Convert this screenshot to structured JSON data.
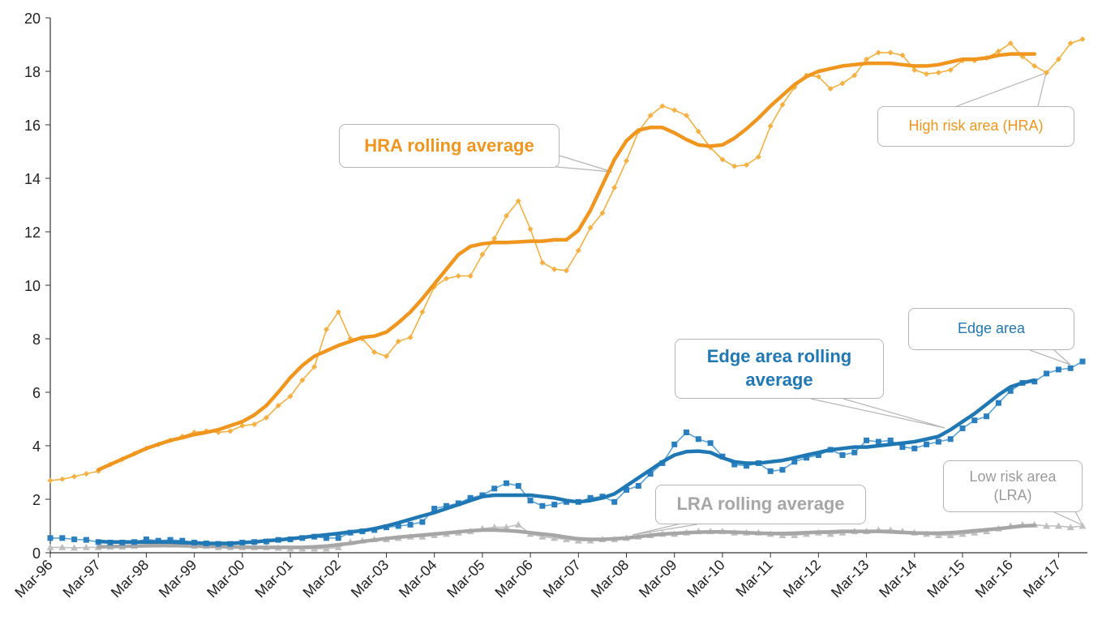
{
  "chart_data": {
    "type": "line",
    "categories": [
      "Mar-96",
      null,
      null,
      null,
      "Mar-97",
      null,
      null,
      null,
      "Mar-98",
      null,
      null,
      null,
      "Mar-99",
      null,
      null,
      null,
      "Mar-00",
      null,
      null,
      null,
      "Mar-01",
      null,
      null,
      null,
      "Mar-02",
      null,
      null,
      null,
      "Mar-03",
      null,
      null,
      null,
      "Mar-04",
      null,
      null,
      null,
      "Mar-05",
      null,
      null,
      null,
      "Mar-06",
      null,
      null,
      null,
      "Mar-07",
      null,
      null,
      null,
      "Mar-08",
      null,
      null,
      null,
      "Mar-09",
      null,
      null,
      null,
      "Mar-10",
      null,
      null,
      null,
      "Mar-11",
      null,
      null,
      null,
      "Mar-12",
      null,
      null,
      null,
      "Mar-13",
      null,
      null,
      null,
      "Mar-14",
      null,
      null,
      null,
      "Mar-15",
      null,
      null,
      null,
      "Mar-16",
      null,
      null,
      null,
      "Mar-17",
      null,
      null
    ],
    "ylim": [
      0,
      20
    ],
    "yticks": [
      0,
      2,
      4,
      6,
      8,
      10,
      12,
      14,
      16,
      18,
      20
    ],
    "grid": false,
    "series": [
      {
        "name": "High risk area (HRA)",
        "color": "#f5b041",
        "marker": "diamond",
        "values": [
          2.7,
          2.75,
          2.85,
          2.95,
          3.05,
          3.3,
          3.5,
          3.7,
          3.9,
          4.05,
          4.2,
          4.35,
          4.5,
          4.55,
          4.5,
          4.55,
          4.75,
          4.8,
          5.05,
          5.5,
          5.85,
          6.45,
          6.95,
          8.35,
          9.0,
          8.0,
          8.0,
          7.5,
          7.35,
          7.9,
          8.05,
          9.0,
          9.95,
          10.25,
          10.35,
          10.35,
          11.15,
          11.75,
          12.6,
          13.15,
          12.1,
          10.85,
          10.6,
          10.55,
          11.3,
          12.15,
          12.7,
          13.65,
          14.65,
          15.75,
          16.35,
          16.7,
          16.55,
          16.35,
          15.75,
          15.15,
          14.7,
          14.45,
          14.5,
          14.8,
          15.95,
          16.75,
          17.4,
          17.85,
          17.8,
          17.35,
          17.55,
          17.85,
          18.45,
          18.7,
          18.7,
          18.6,
          18.05,
          17.9,
          17.95,
          18.05,
          18.4,
          18.4,
          18.5,
          18.75,
          19.05,
          18.55,
          18.2,
          17.95,
          18.45,
          19.05,
          19.2
        ]
      },
      {
        "name": "HRA rolling average",
        "color": "#f0961e",
        "marker": null,
        "values": [
          null,
          null,
          null,
          null,
          3.1,
          3.3,
          3.5,
          3.7,
          3.9,
          4.05,
          4.2,
          4.3,
          4.42,
          4.5,
          4.6,
          4.75,
          4.9,
          5.15,
          5.5,
          6.0,
          6.55,
          7.0,
          7.35,
          7.55,
          7.75,
          7.9,
          8.05,
          8.1,
          8.25,
          8.6,
          9.0,
          9.5,
          10.05,
          10.6,
          11.15,
          11.45,
          11.55,
          11.6,
          11.6,
          11.62,
          11.65,
          11.65,
          11.7,
          11.7,
          12.05,
          12.8,
          13.75,
          14.7,
          15.4,
          15.8,
          15.9,
          15.9,
          15.7,
          15.45,
          15.25,
          15.2,
          15.25,
          15.5,
          15.85,
          16.25,
          16.7,
          17.1,
          17.5,
          17.8,
          18.0,
          18.1,
          18.2,
          18.25,
          18.3,
          18.3,
          18.3,
          18.25,
          18.2,
          18.2,
          18.25,
          18.35,
          18.45,
          18.45,
          18.5,
          18.6,
          18.65,
          18.65,
          18.65,
          null,
          null,
          null,
          null
        ]
      },
      {
        "name": "Edge area",
        "color": "#5ba3d6",
        "marker": "square",
        "values": [
          0.55,
          0.55,
          0.5,
          0.48,
          0.4,
          0.38,
          0.38,
          0.4,
          0.5,
          0.45,
          0.48,
          0.45,
          0.38,
          0.35,
          0.33,
          0.33,
          0.38,
          0.4,
          0.42,
          0.48,
          0.5,
          0.55,
          0.6,
          0.55,
          0.55,
          0.75,
          0.8,
          0.85,
          0.95,
          1.0,
          1.05,
          1.15,
          1.65,
          1.75,
          1.85,
          2.05,
          2.15,
          2.4,
          2.6,
          2.5,
          1.95,
          1.75,
          1.8,
          1.9,
          1.9,
          2.05,
          2.1,
          1.9,
          2.35,
          2.5,
          2.95,
          3.35,
          4.05,
          4.5,
          4.25,
          4.1,
          3.6,
          3.3,
          3.25,
          3.35,
          3.05,
          3.1,
          3.4,
          3.55,
          3.65,
          3.85,
          3.65,
          3.75,
          4.2,
          4.15,
          4.2,
          3.95,
          3.9,
          4.05,
          4.15,
          4.25,
          4.65,
          4.95,
          5.1,
          5.6,
          6.05,
          6.35,
          6.4,
          6.7,
          6.85,
          6.9,
          7.15
        ]
      },
      {
        "name": "Edge area rolling average",
        "color": "#1f78b4",
        "marker": null,
        "values": [
          null,
          null,
          null,
          null,
          0.42,
          0.4,
          0.4,
          0.4,
          0.4,
          0.4,
          0.4,
          0.38,
          0.37,
          0.35,
          0.35,
          0.35,
          0.38,
          0.4,
          0.45,
          0.48,
          0.52,
          0.57,
          0.62,
          0.67,
          0.72,
          0.78,
          0.82,
          0.9,
          1.0,
          1.12,
          1.25,
          1.38,
          1.5,
          1.65,
          1.8,
          1.95,
          2.1,
          2.15,
          2.15,
          2.15,
          2.15,
          2.1,
          2.05,
          1.95,
          1.9,
          1.95,
          2.05,
          2.2,
          2.5,
          2.8,
          3.1,
          3.4,
          3.65,
          3.78,
          3.8,
          3.75,
          3.55,
          3.4,
          3.35,
          3.35,
          3.4,
          3.45,
          3.55,
          3.65,
          3.75,
          3.85,
          3.9,
          3.95,
          3.95,
          4.0,
          4.05,
          4.1,
          4.15,
          4.25,
          4.35,
          4.6,
          4.9,
          5.2,
          5.55,
          5.9,
          6.2,
          6.35,
          6.45,
          null,
          null,
          null,
          null
        ]
      },
      {
        "name": "Low risk area (LRA)",
        "color": "#bfbfbf",
        "marker": "triangle",
        "values": [
          0.2,
          0.2,
          0.18,
          0.2,
          0.2,
          0.22,
          0.22,
          0.25,
          0.3,
          0.3,
          0.3,
          0.3,
          0.25,
          0.25,
          0.2,
          0.2,
          0.2,
          0.2,
          0.2,
          0.18,
          0.15,
          0.15,
          0.15,
          0.15,
          0.2,
          0.4,
          0.45,
          0.5,
          0.5,
          0.55,
          0.6,
          0.6,
          0.65,
          0.7,
          0.75,
          0.8,
          0.9,
          0.95,
          0.95,
          1.05,
          0.7,
          0.6,
          0.55,
          0.5,
          0.45,
          0.45,
          0.5,
          0.5,
          0.55,
          0.6,
          0.65,
          0.7,
          0.7,
          0.75,
          0.8,
          0.8,
          0.8,
          0.75,
          0.75,
          0.75,
          0.7,
          0.65,
          0.65,
          0.7,
          0.75,
          0.7,
          0.75,
          0.8,
          0.8,
          0.85,
          0.85,
          0.8,
          0.75,
          0.7,
          0.65,
          0.65,
          0.7,
          0.75,
          0.8,
          0.9,
          1.0,
          1.05,
          1.05,
          1.0,
          1.0,
          0.95,
          1.0
        ]
      },
      {
        "name": "LRA rolling average",
        "color": "#a6a6a6",
        "marker": null,
        "values": [
          null,
          null,
          null,
          null,
          0.22,
          0.23,
          0.24,
          0.25,
          0.26,
          0.27,
          0.27,
          0.26,
          0.25,
          0.24,
          0.23,
          0.22,
          0.21,
          0.2,
          0.2,
          0.2,
          0.2,
          0.2,
          0.22,
          0.25,
          0.3,
          0.35,
          0.42,
          0.48,
          0.53,
          0.58,
          0.62,
          0.66,
          0.7,
          0.74,
          0.78,
          0.82,
          0.85,
          0.85,
          0.83,
          0.8,
          0.75,
          0.7,
          0.65,
          0.58,
          0.52,
          0.5,
          0.5,
          0.52,
          0.55,
          0.6,
          0.65,
          0.7,
          0.72,
          0.75,
          0.77,
          0.78,
          0.78,
          0.77,
          0.75,
          0.73,
          0.72,
          0.72,
          0.73,
          0.75,
          0.77,
          0.78,
          0.8,
          0.8,
          0.8,
          0.8,
          0.78,
          0.76,
          0.74,
          0.73,
          0.73,
          0.75,
          0.78,
          0.82,
          0.86,
          0.9,
          0.95,
          1.0,
          1.02,
          null,
          null,
          null,
          null
        ]
      }
    ]
  }
}
